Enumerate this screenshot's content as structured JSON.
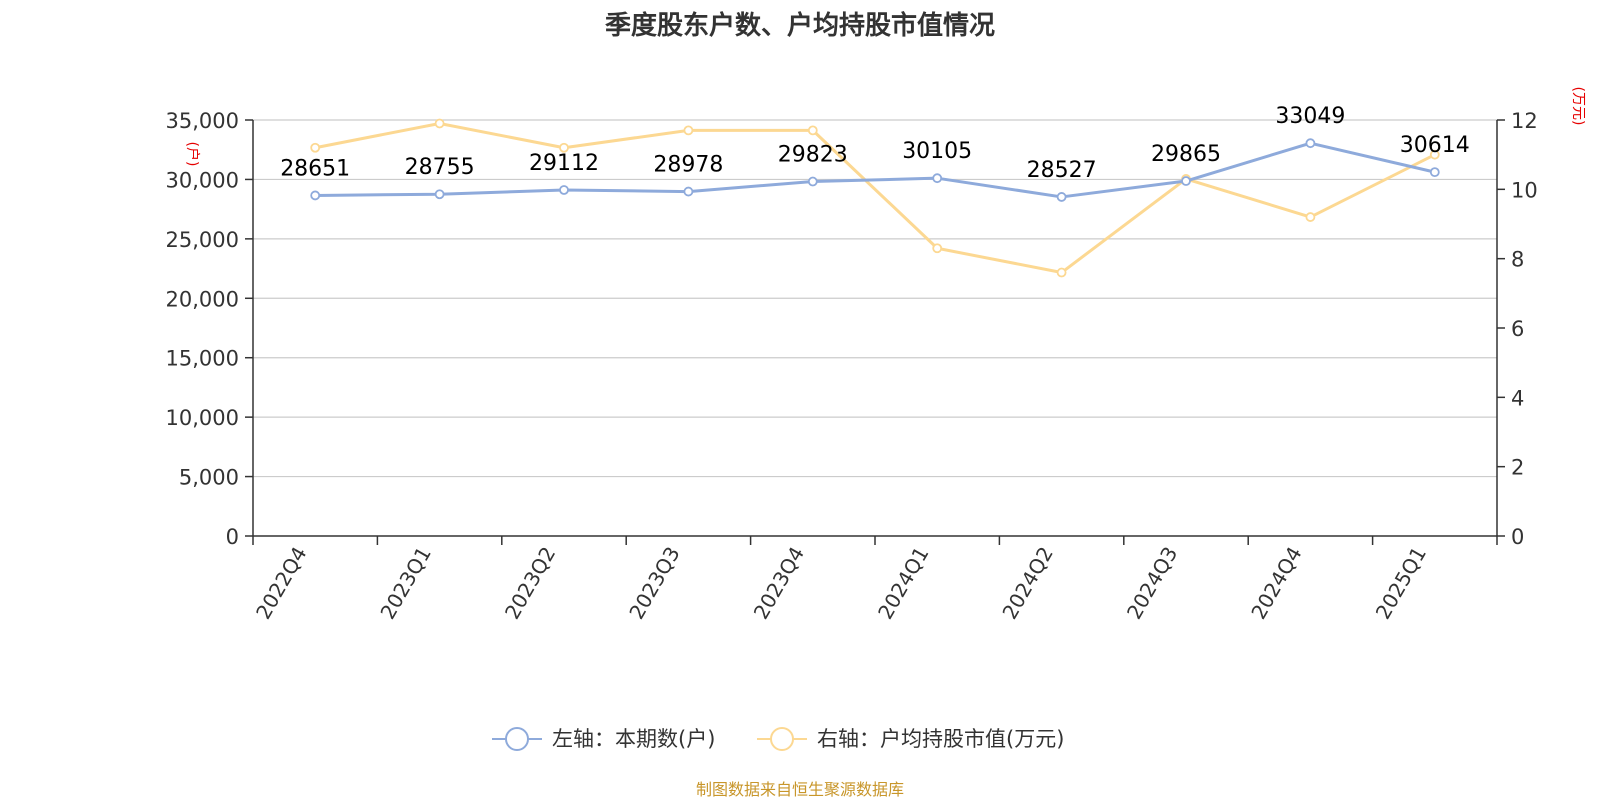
{
  "chart_data": {
    "type": "line",
    "title": "季度股东户数、户均持股市值情况",
    "categories": [
      "2022Q4",
      "2023Q1",
      "2023Q2",
      "2023Q3",
      "2023Q4",
      "2024Q1",
      "2024Q2",
      "2024Q3",
      "2024Q4",
      "2025Q1"
    ],
    "series": [
      {
        "name": "左轴：本期数(户)",
        "axis": "left",
        "color": "#8eaadb",
        "values": [
          28651,
          28755,
          29112,
          28978,
          29823,
          30105,
          28527,
          29865,
          33049,
          30614
        ],
        "labels": [
          "28651",
          "28755",
          "29112",
          "28978",
          "29823",
          "30105",
          "28527",
          "29865",
          "33049",
          "30614"
        ]
      },
      {
        "name": "右轴：户均持股市值(万元)",
        "axis": "right",
        "color": "#fcd892",
        "values": [
          11.2,
          11.9,
          11.2,
          11.7,
          11.7,
          8.3,
          7.6,
          10.3,
          9.2,
          11.0
        ]
      }
    ],
    "left_axis": {
      "unit": "(户)",
      "ylim": [
        0,
        35000
      ],
      "ticks": [
        "0",
        "5,000",
        "10,000",
        "15,000",
        "20,000",
        "25,000",
        "30,000",
        "35,000"
      ],
      "tick_values": [
        0,
        5000,
        10000,
        15000,
        20000,
        25000,
        30000,
        35000
      ]
    },
    "right_axis": {
      "unit": "(万元)",
      "ylim": [
        0,
        12
      ],
      "ticks": [
        "0",
        "2",
        "4",
        "6",
        "8",
        "10",
        "12"
      ],
      "tick_values": [
        0,
        2,
        4,
        6,
        8,
        10,
        12
      ]
    },
    "grid": true,
    "legend_position": "bottom"
  },
  "source": "制图数据来自恒生聚源数据库"
}
